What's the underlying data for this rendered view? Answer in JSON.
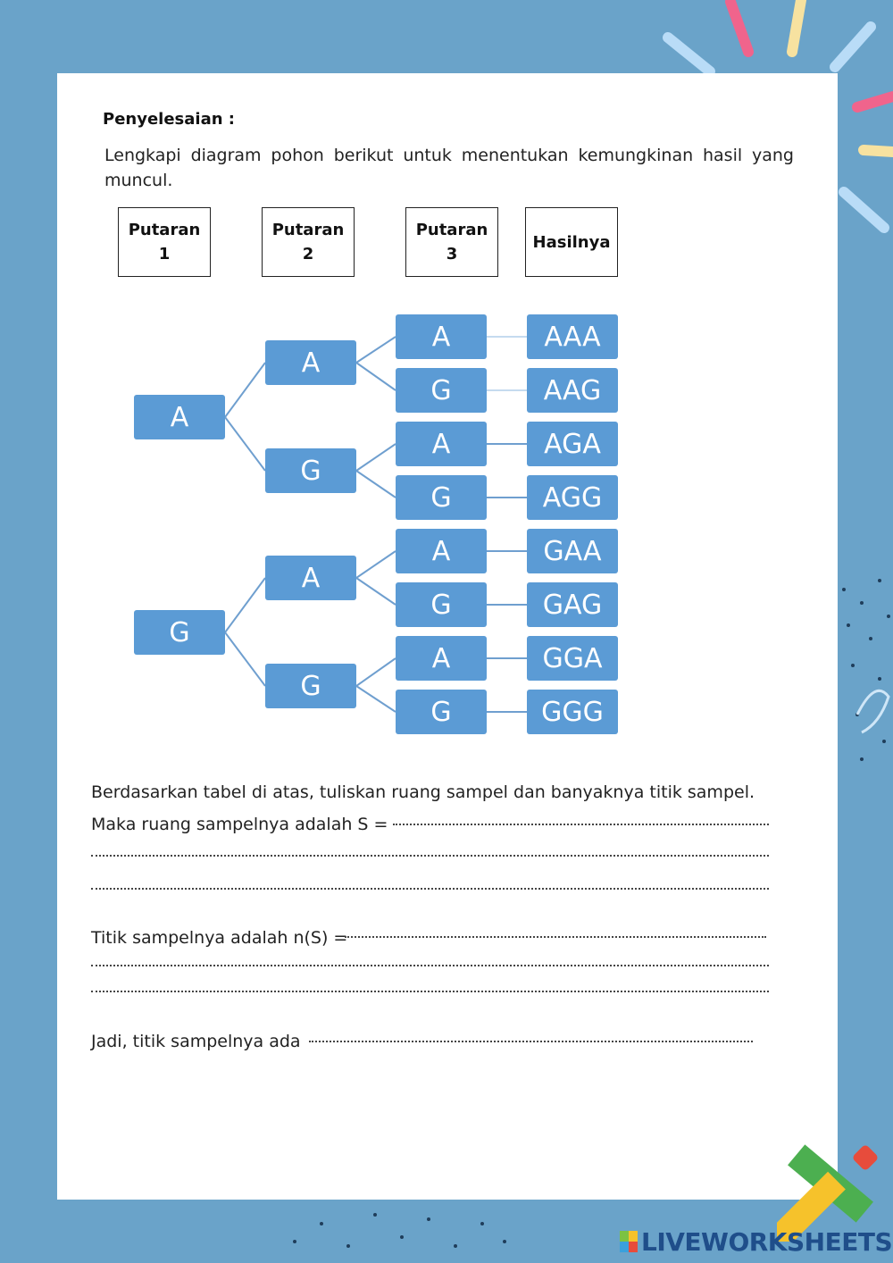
{
  "worksheet": {
    "title": "Penyelesaian :",
    "instruction": "Lengkapi diagram pohon berikut untuk menentukan kemungkinan hasil yang muncul.",
    "headers": [
      "Putaran\n1",
      "Putaran\n2",
      "Putaran\n3",
      "Hasilnya"
    ],
    "tree": {
      "level1": [
        "A",
        "G"
      ],
      "level2": [
        "A",
        "G",
        "A",
        "G"
      ],
      "level3": [
        "A",
        "G",
        "A",
        "G",
        "A",
        "G",
        "A",
        "G"
      ],
      "results": [
        "AAA",
        "AAG",
        "AGA",
        "AGG",
        "GAA",
        "GAG",
        "GGA",
        "GGG"
      ]
    },
    "question": "Berdasarkan tabel di atas, tuliskan ruang sampel dan banyaknya titik sampel.",
    "sample_space_label": "Maka ruang sampelnya adalah S =",
    "sample_points_label": "Titik sampelnya adalah n(S) =",
    "conclusion_label": "Jadi, titik sampelnya ada"
  },
  "colors": {
    "background": "#6aa3c9",
    "node": "#5b9bd5",
    "logo": "#1f4e8a"
  },
  "branding": {
    "logo_text": "LIVEWORKSHEETS",
    "logo_badge": "LIVE"
  }
}
